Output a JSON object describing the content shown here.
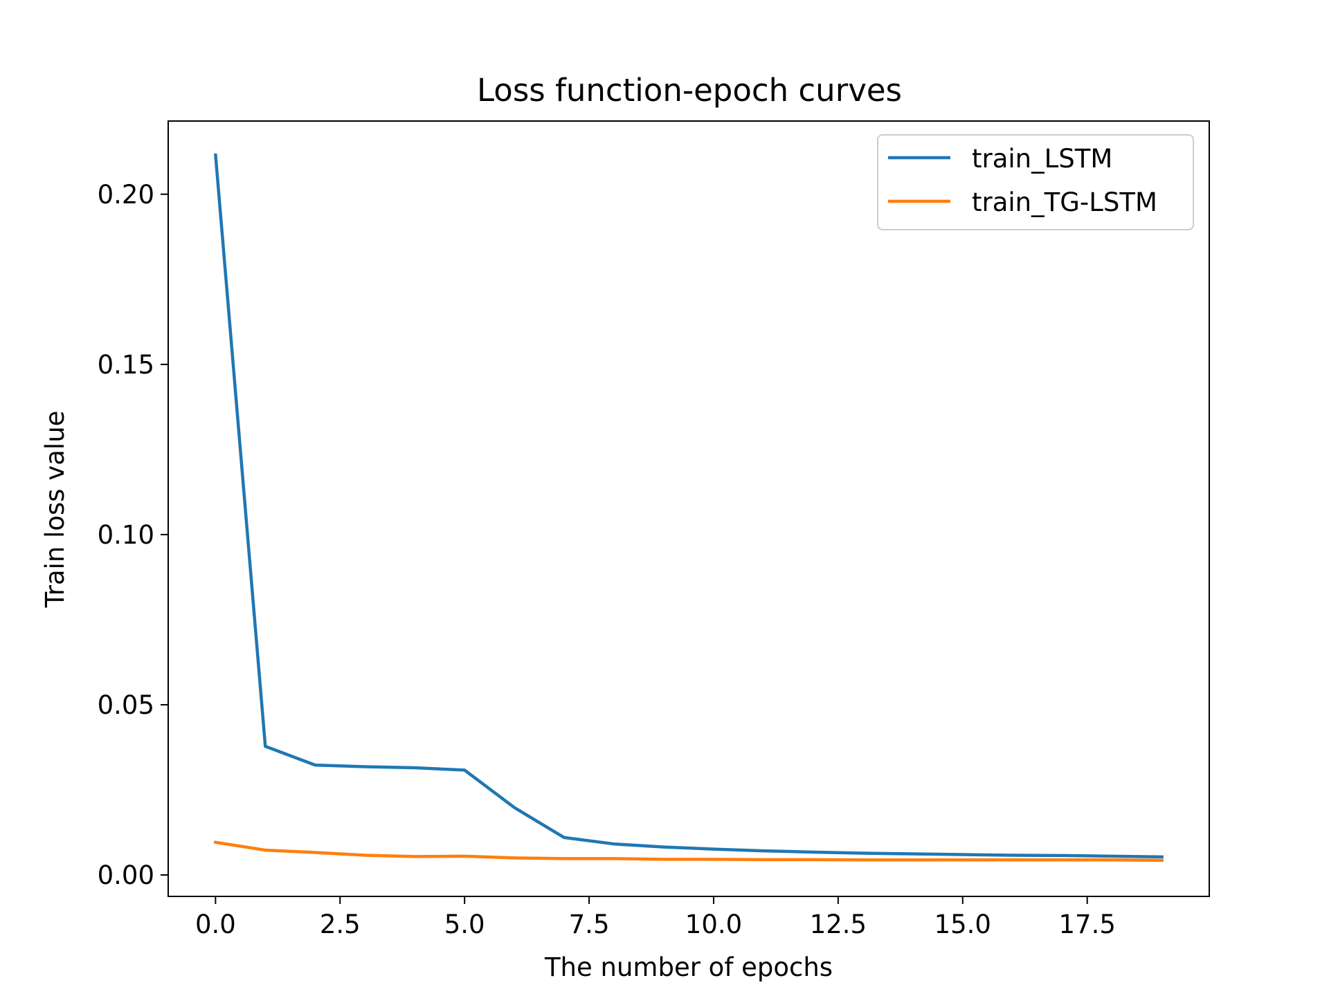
{
  "chart_data": {
    "type": "line",
    "title": "Loss function-epoch curves",
    "xlabel": "The number of epochs",
    "ylabel": "Train loss value",
    "xlim": [
      -0.95,
      19.95
    ],
    "ylim": [
      -0.0063,
      0.2215
    ],
    "x_ticks": [
      0.0,
      2.5,
      5.0,
      7.5,
      10.0,
      12.5,
      15.0,
      17.5
    ],
    "x_tick_labels": [
      "0.0",
      "2.5",
      "5.0",
      "7.5",
      "10.0",
      "12.5",
      "15.0",
      "17.5"
    ],
    "y_ticks": [
      0.0,
      0.05,
      0.1,
      0.15,
      0.2
    ],
    "y_tick_labels": [
      "0.00",
      "0.05",
      "0.10",
      "0.15",
      "0.20"
    ],
    "grid": false,
    "legend_position": "top-right",
    "x": [
      0,
      1,
      2,
      3,
      4,
      5,
      6,
      7,
      8,
      9,
      10,
      11,
      12,
      13,
      14,
      15,
      16,
      17,
      18,
      19
    ],
    "series": [
      {
        "name": "train_LSTM",
        "color": "#1f77b4",
        "values": [
          0.2115,
          0.0378,
          0.0323,
          0.0318,
          0.0315,
          0.0308,
          0.0198,
          0.011,
          0.0091,
          0.0082,
          0.0076,
          0.0071,
          0.0067,
          0.0064,
          0.0062,
          0.006,
          0.0058,
          0.0057,
          0.0055,
          0.0053
        ]
      },
      {
        "name": "train_TG-LSTM",
        "color": "#ff7f0e",
        "values": [
          0.0096,
          0.0073,
          0.0066,
          0.0058,
          0.0054,
          0.0055,
          0.005,
          0.0048,
          0.0048,
          0.0046,
          0.0046,
          0.0045,
          0.0045,
          0.0044,
          0.0044,
          0.0044,
          0.0044,
          0.0044,
          0.0044,
          0.0043
        ]
      }
    ]
  }
}
